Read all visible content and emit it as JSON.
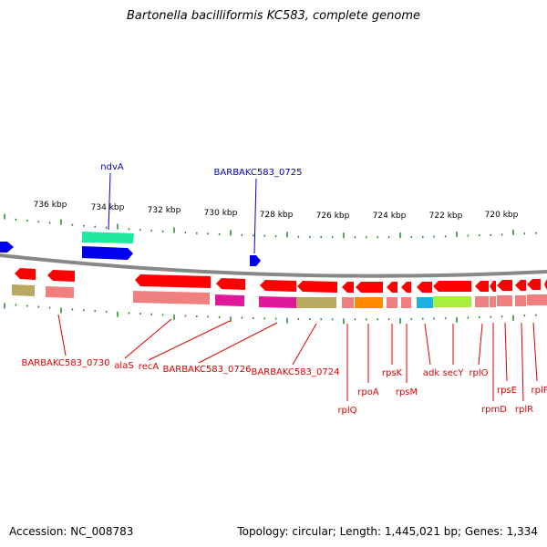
{
  "title": "Bartonella bacilliformis KC583, complete genome",
  "footer": {
    "accession": "Accession: NC_008783",
    "stats": "Topology: circular; Length: 1,445,021 bp; Genes: 1,334"
  },
  "colors": {
    "forward_label": "#0000cc",
    "reverse_label": "#dd0000",
    "backbone": "#888888",
    "tick": "#228822",
    "forward_gene": "#0000ee",
    "reverse_gene": "#ff0000",
    "reverse_gene_light": "#f08080"
  },
  "scale_labels": [
    "736 kbp",
    "734 kbp",
    "732 kbp",
    "730 kbp",
    "728 kbp",
    "726 kbp",
    "724 kbp",
    "722 kbp",
    "720 kbp"
  ],
  "forward_labels": [
    "ndvA",
    "BARBAKC583_0725"
  ],
  "reverse_labels": [
    "BARBAKC583_0730",
    "alaS",
    "recA",
    "BARBAKC583_0726",
    "BARBAKC583_0724",
    "rplQ",
    "rpoA",
    "rpsK",
    "rpsM",
    "adk",
    "secY",
    "rplO",
    "rpmD",
    "rpsE",
    "rplR",
    "rplF"
  ],
  "category_colors": {
    "olive": "#b8a860",
    "magenta": "#e0189a",
    "orange": "#ff8a00",
    "cyan": "#1ab0e0",
    "lime": "#a8ee40",
    "aquamarine": "#20e8a0"
  }
}
